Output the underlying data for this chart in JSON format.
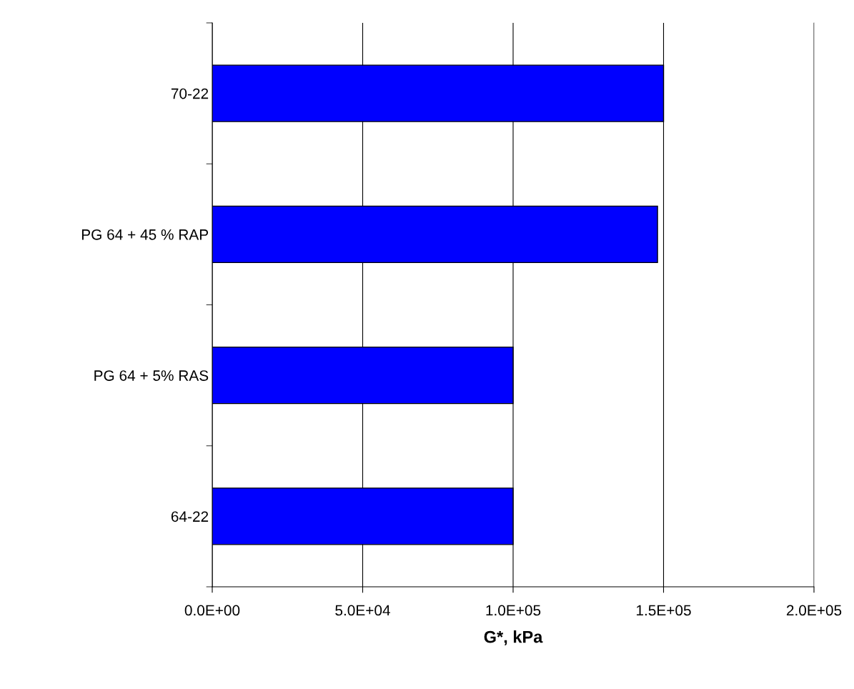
{
  "chart_data": {
    "type": "bar",
    "orientation": "horizontal",
    "xlabel": "G*, kPa",
    "categories": [
      "70-22",
      "PG 64 + 45 % RAP",
      "PG 64 + 5% RAS",
      "64-22"
    ],
    "values": [
      150000,
      148000,
      100000,
      100000
    ],
    "color": "#0000ff",
    "xlim": [
      0,
      200000
    ],
    "xticks": [
      {
        "value": 0,
        "label": "0.0E+00"
      },
      {
        "value": 50000,
        "label": "5.0E+04"
      },
      {
        "value": 100000,
        "label": "1.0E+05"
      },
      {
        "value": 150000,
        "label": "1.5E+05"
      },
      {
        "value": 200000,
        "label": "2.0E+05"
      }
    ],
    "grid": "x",
    "legend": false
  }
}
